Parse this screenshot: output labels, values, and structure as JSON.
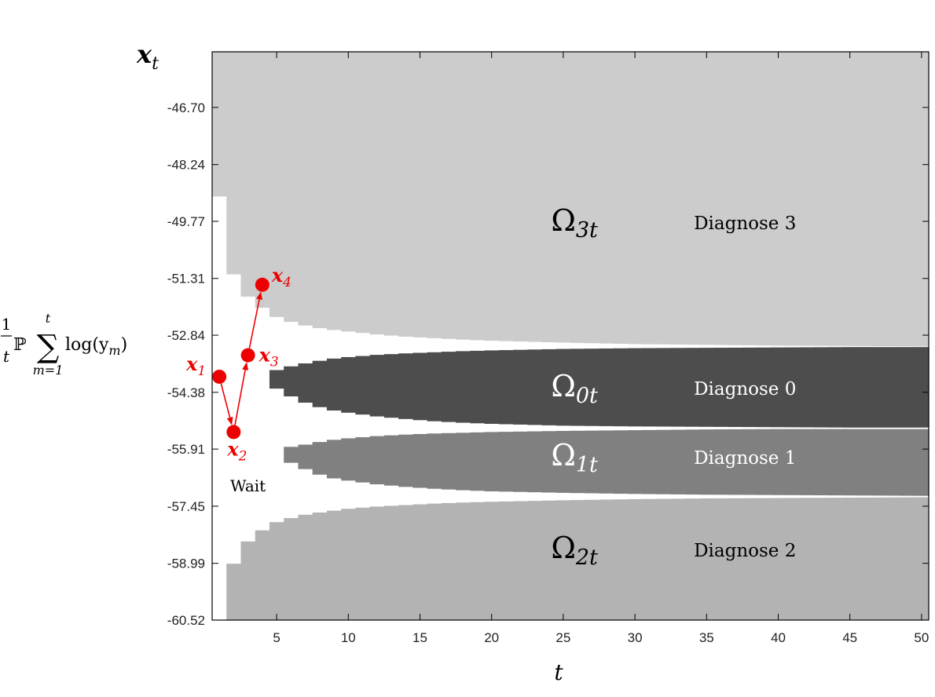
{
  "chart_data": {
    "type": "area",
    "title": "",
    "xlabel": "t",
    "ylabel_top": "x",
    "ylabel_top_sub": "t",
    "ylabel_side": {
      "frac_num": "1",
      "frac_den": "t",
      "symbol": "ℙ",
      "sum": "∑",
      "sum_upper": "t",
      "sum_lower": "m=1",
      "func": "log(y",
      "func_sub": "m",
      "func_close": ")"
    },
    "xlim": [
      0.5,
      50.5
    ],
    "ylim": [
      -60.52,
      -45.2
    ],
    "xticks": [
      5,
      10,
      15,
      20,
      25,
      30,
      35,
      40,
      45,
      50
    ],
    "yticks": [
      -46.7,
      -48.24,
      -49.77,
      -51.31,
      -52.84,
      -54.38,
      -55.91,
      -57.45,
      -58.99,
      -60.52
    ],
    "ytick_labels": [
      "-46.70",
      "-48.24",
      "-49.77",
      "-51.31",
      "-52.84",
      "-54.38",
      "-55.91",
      "-57.45",
      "-58.99",
      "-60.52"
    ],
    "grid": false,
    "colors": {
      "omega3": "#cccccc",
      "omega0": "#4d4d4d",
      "omega1": "#808080",
      "omega2": "#b3b3b3",
      "wait": "#ffffff",
      "path": "#ee0000",
      "axis": "#000000"
    },
    "boundaries": {
      "t": [
        1,
        2,
        3,
        4,
        5,
        6,
        7,
        8,
        9,
        10,
        12,
        14,
        16,
        18,
        20,
        25,
        30,
        35,
        40,
        45,
        50
      ],
      "omega3_lower": [
        -49.1,
        -51.2,
        -51.8,
        -52.1,
        -52.35,
        -52.48,
        -52.58,
        -52.65,
        -52.7,
        -52.74,
        -52.82,
        -52.88,
        -52.92,
        -52.96,
        -52.99,
        -53.04,
        -53.08,
        -53.1,
        -53.12,
        -53.13,
        -53.14
      ],
      "omega0_upper": [
        null,
        null,
        null,
        null,
        -53.78,
        -53.68,
        -53.6,
        -53.53,
        -53.47,
        -53.43,
        -53.37,
        -53.33,
        -53.3,
        -53.27,
        -53.25,
        -53.21,
        -53.19,
        -53.18,
        -53.17,
        -53.16,
        -53.16
      ],
      "omega0_lower": [
        null,
        null,
        null,
        null,
        -54.28,
        -54.49,
        -54.66,
        -54.78,
        -54.87,
        -54.93,
        -55.03,
        -55.1,
        -55.16,
        -55.2,
        -55.23,
        -55.28,
        -55.3,
        -55.31,
        -55.32,
        -55.33,
        -55.33
      ],
      "omega1_upper": [
        null,
        null,
        null,
        null,
        null,
        -55.85,
        -55.79,
        -55.72,
        -55.66,
        -55.62,
        -55.56,
        -55.52,
        -55.49,
        -55.47,
        -55.45,
        -55.42,
        -55.4,
        -55.38,
        -55.37,
        -55.37,
        -55.37
      ],
      "omega1_lower": [
        null,
        null,
        null,
        null,
        null,
        -56.28,
        -56.45,
        -56.6,
        -56.7,
        -56.76,
        -56.86,
        -56.93,
        -56.98,
        -57.02,
        -57.05,
        -57.09,
        -57.12,
        -57.14,
        -57.15,
        -57.16,
        -57.17
      ],
      "omega2_upper": [
        -60.52,
        -59.0,
        -58.4,
        -58.1,
        -57.88,
        -57.77,
        -57.68,
        -57.62,
        -57.57,
        -57.52,
        -57.46,
        -57.42,
        -57.38,
        -57.35,
        -57.33,
        -57.29,
        -57.26,
        -57.24,
        -57.23,
        -57.22,
        -57.21
      ]
    },
    "regions": [
      {
        "symbol": "Ω",
        "sub": "3t",
        "label": "Diagnose 3",
        "x": 26,
        "y": -49.77,
        "text_color": "#000000"
      },
      {
        "symbol": "Ω",
        "sub": "0t",
        "label": "Diagnose 0",
        "x": 26,
        "y": -54.24,
        "text_color": "#ffffff"
      },
      {
        "symbol": "Ω",
        "sub": "1t",
        "label": "Diagnose 1",
        "x": 26,
        "y": -56.1,
        "text_color": "#ffffff"
      },
      {
        "symbol": "Ω",
        "sub": "2t",
        "label": "Diagnose 2",
        "x": 26,
        "y": -58.59,
        "text_color": "#000000"
      }
    ],
    "wait_label": {
      "text": "Wait",
      "x": 3.0,
      "y": -57.05
    },
    "path": [
      {
        "t": 1,
        "value": -53.96,
        "label": "x",
        "sub": "1"
      },
      {
        "t": 2,
        "value": -55.45,
        "label": "x",
        "sub": "2"
      },
      {
        "t": 3,
        "value": -53.38,
        "label": "x",
        "sub": "3"
      },
      {
        "t": 4,
        "value": -51.48,
        "label": "x",
        "sub": "4"
      }
    ]
  }
}
